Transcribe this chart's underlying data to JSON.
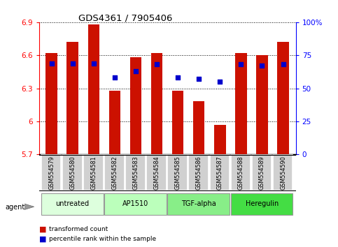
{
  "title": "GDS4361 / 7905406",
  "samples": [
    "GSM554579",
    "GSM554580",
    "GSM554581",
    "GSM554582",
    "GSM554583",
    "GSM554584",
    "GSM554585",
    "GSM554586",
    "GSM554587",
    "GSM554588",
    "GSM554589",
    "GSM554590"
  ],
  "bar_values": [
    6.62,
    6.72,
    6.88,
    6.28,
    6.58,
    6.62,
    6.28,
    6.18,
    5.97,
    6.62,
    6.6,
    6.72
  ],
  "percentile_values": [
    69,
    69,
    69,
    58,
    63,
    68,
    58,
    57,
    55,
    68,
    67,
    68
  ],
  "bar_color": "#cc1100",
  "percentile_color": "#0000cc",
  "ymin": 5.7,
  "ymax": 6.9,
  "yticks": [
    5.7,
    6.0,
    6.3,
    6.6,
    6.9
  ],
  "ytick_labels": [
    "5.7",
    "6",
    "6.3",
    "6.6",
    "6.9"
  ],
  "right_yticks": [
    0,
    25,
    50,
    75,
    100
  ],
  "right_ytick_labels": [
    "0",
    "25",
    "50",
    "75",
    "100%"
  ],
  "groups": [
    {
      "label": "untreated",
      "start": 0,
      "end": 3,
      "color": "#ddffdd"
    },
    {
      "label": "AP1510",
      "start": 3,
      "end": 6,
      "color": "#bbffbb"
    },
    {
      "label": "TGF-alpha",
      "start": 6,
      "end": 9,
      "color": "#88ee88"
    },
    {
      "label": "Heregulin",
      "start": 9,
      "end": 12,
      "color": "#44dd44"
    }
  ],
  "agent_label": "agent",
  "legend_bar_label": "transformed count",
  "legend_pct_label": "percentile rank within the sample",
  "grid_color": "#000000",
  "background_color": "#ffffff",
  "bar_width": 0.55
}
